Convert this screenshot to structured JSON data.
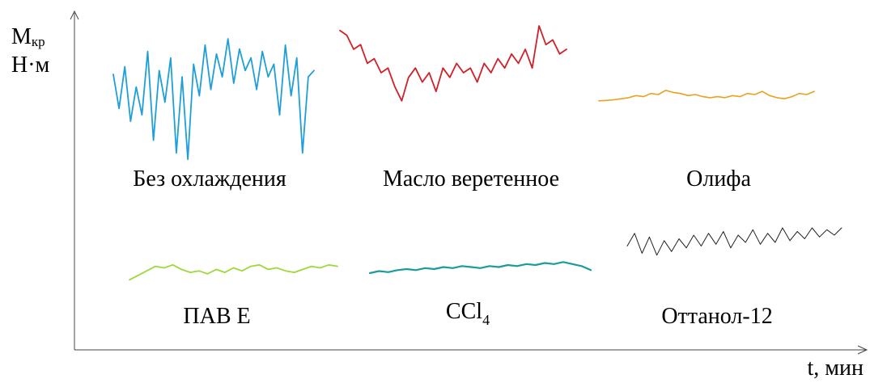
{
  "chart_data": {
    "type": "line",
    "title": "",
    "ylabel_main": "М",
    "ylabel_sub": "кр",
    "ylabel_unit": "Н·м",
    "xlabel": "t, мин",
    "grid": false,
    "series": [
      {
        "name": "Без охлаждения",
        "color": "#1f9fd9",
        "trend": "very high fluctuation",
        "values": [
          0.72,
          0.45,
          0.78,
          0.35,
          0.62,
          0.4,
          0.9,
          0.2,
          0.75,
          0.5,
          0.85,
          0.1,
          0.7,
          0.05,
          0.8,
          0.55,
          0.95,
          0.6,
          0.88,
          0.7,
          1.0,
          0.65,
          0.92,
          0.75,
          0.85,
          0.6,
          0.9,
          0.7,
          0.8,
          0.4,
          0.95,
          0.55,
          0.85,
          0.1,
          0.7,
          0.75
        ]
      },
      {
        "name": "Масло веретенное",
        "color": "#d0202a",
        "trend": "high fluctuation, dip in middle",
        "values": [
          0.95,
          0.9,
          0.75,
          0.8,
          0.6,
          0.65,
          0.5,
          0.55,
          0.35,
          0.2,
          0.45,
          0.55,
          0.4,
          0.5,
          0.3,
          0.55,
          0.45,
          0.6,
          0.5,
          0.55,
          0.4,
          0.6,
          0.5,
          0.65,
          0.55,
          0.7,
          0.6,
          0.75,
          0.55,
          1.0,
          0.8,
          0.85,
          0.7,
          0.75
        ]
      },
      {
        "name": "Олифа",
        "color": "#e8a21c",
        "trend": "moderate fluctuation",
        "values": [
          0.2,
          0.22,
          0.25,
          0.3,
          0.35,
          0.45,
          0.4,
          0.55,
          0.5,
          0.7,
          0.6,
          0.55,
          0.45,
          0.5,
          0.4,
          0.35,
          0.4,
          0.35,
          0.45,
          0.4,
          0.55,
          0.5,
          0.65,
          0.45,
          0.35,
          0.3,
          0.4,
          0.55,
          0.5,
          0.65
        ]
      },
      {
        "name": "ПАВ Е",
        "color": "#9fd83a",
        "trend": "low fluctuation",
        "values": [
          0.1,
          0.25,
          0.4,
          0.55,
          0.5,
          0.6,
          0.45,
          0.35,
          0.4,
          0.3,
          0.45,
          0.35,
          0.5,
          0.4,
          0.55,
          0.6,
          0.45,
          0.5,
          0.4,
          0.35,
          0.45,
          0.55,
          0.5,
          0.6,
          0.55
        ]
      },
      {
        "name": "CCl4",
        "color": "#1a9c9c",
        "trend": "low fluctuation, slightly rising",
        "values": [
          0.2,
          0.3,
          0.25,
          0.35,
          0.4,
          0.35,
          0.45,
          0.4,
          0.5,
          0.45,
          0.55,
          0.5,
          0.45,
          0.55,
          0.5,
          0.6,
          0.55,
          0.65,
          0.6,
          0.7,
          0.65,
          0.75,
          0.65,
          0.55,
          0.35
        ]
      },
      {
        "name": "Оттанол-12",
        "color": "#222222",
        "trend": "small oscillations, rising",
        "values": [
          0.5,
          0.85,
          0.3,
          0.75,
          0.25,
          0.65,
          0.35,
          0.7,
          0.45,
          0.8,
          0.5,
          0.85,
          0.55,
          0.9,
          0.45,
          0.8,
          0.6,
          0.95,
          0.55,
          0.85,
          0.6,
          1.0,
          0.65,
          0.9,
          0.7,
          1.0,
          0.75,
          0.95,
          0.8,
          1.0
        ]
      }
    ],
    "captions": {
      "s0": "Без охлаждения",
      "s1": "Масло веретенное",
      "s2": "Олифа",
      "s3": "ПАВ Е",
      "s4_main": "CCl",
      "s4_sub": "4",
      "s5": "Оттанол-12"
    }
  }
}
